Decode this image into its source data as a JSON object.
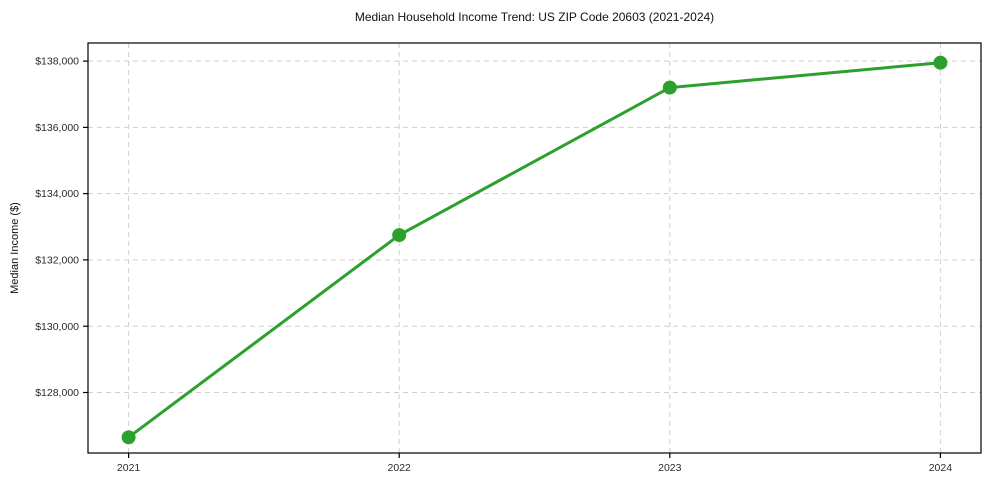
{
  "chart_data": {
    "type": "line",
    "title": "Median Household Income Trend: US ZIP Code 20603 (2021-2024)",
    "xlabel": "",
    "ylabel": "Median Income ($)",
    "categories": [
      2021,
      2022,
      2023,
      2024
    ],
    "series": [
      {
        "name": "Median Household Income",
        "values": [
          126650,
          132750,
          137200,
          137950
        ]
      }
    ],
    "x_tick_labels": [
      "2021",
      "2022",
      "2023",
      "2024"
    ],
    "y_ticks": [
      128000,
      130000,
      132000,
      134000,
      136000,
      138000
    ],
    "y_tick_labels": [
      "$128,000",
      "$130,000",
      "$132,000",
      "$134,000",
      "$136,000",
      "$138,000"
    ],
    "xlim": [
      2020.85,
      2024.15
    ],
    "ylim": [
      126175,
      138545
    ],
    "grid": true,
    "grid_style": "dashed",
    "grid_color": "#cfcfcf",
    "line_color": "#2ca02c",
    "marker": "circle",
    "marker_radius": 7,
    "legend_position": "none",
    "background_color": "#ffffff"
  }
}
